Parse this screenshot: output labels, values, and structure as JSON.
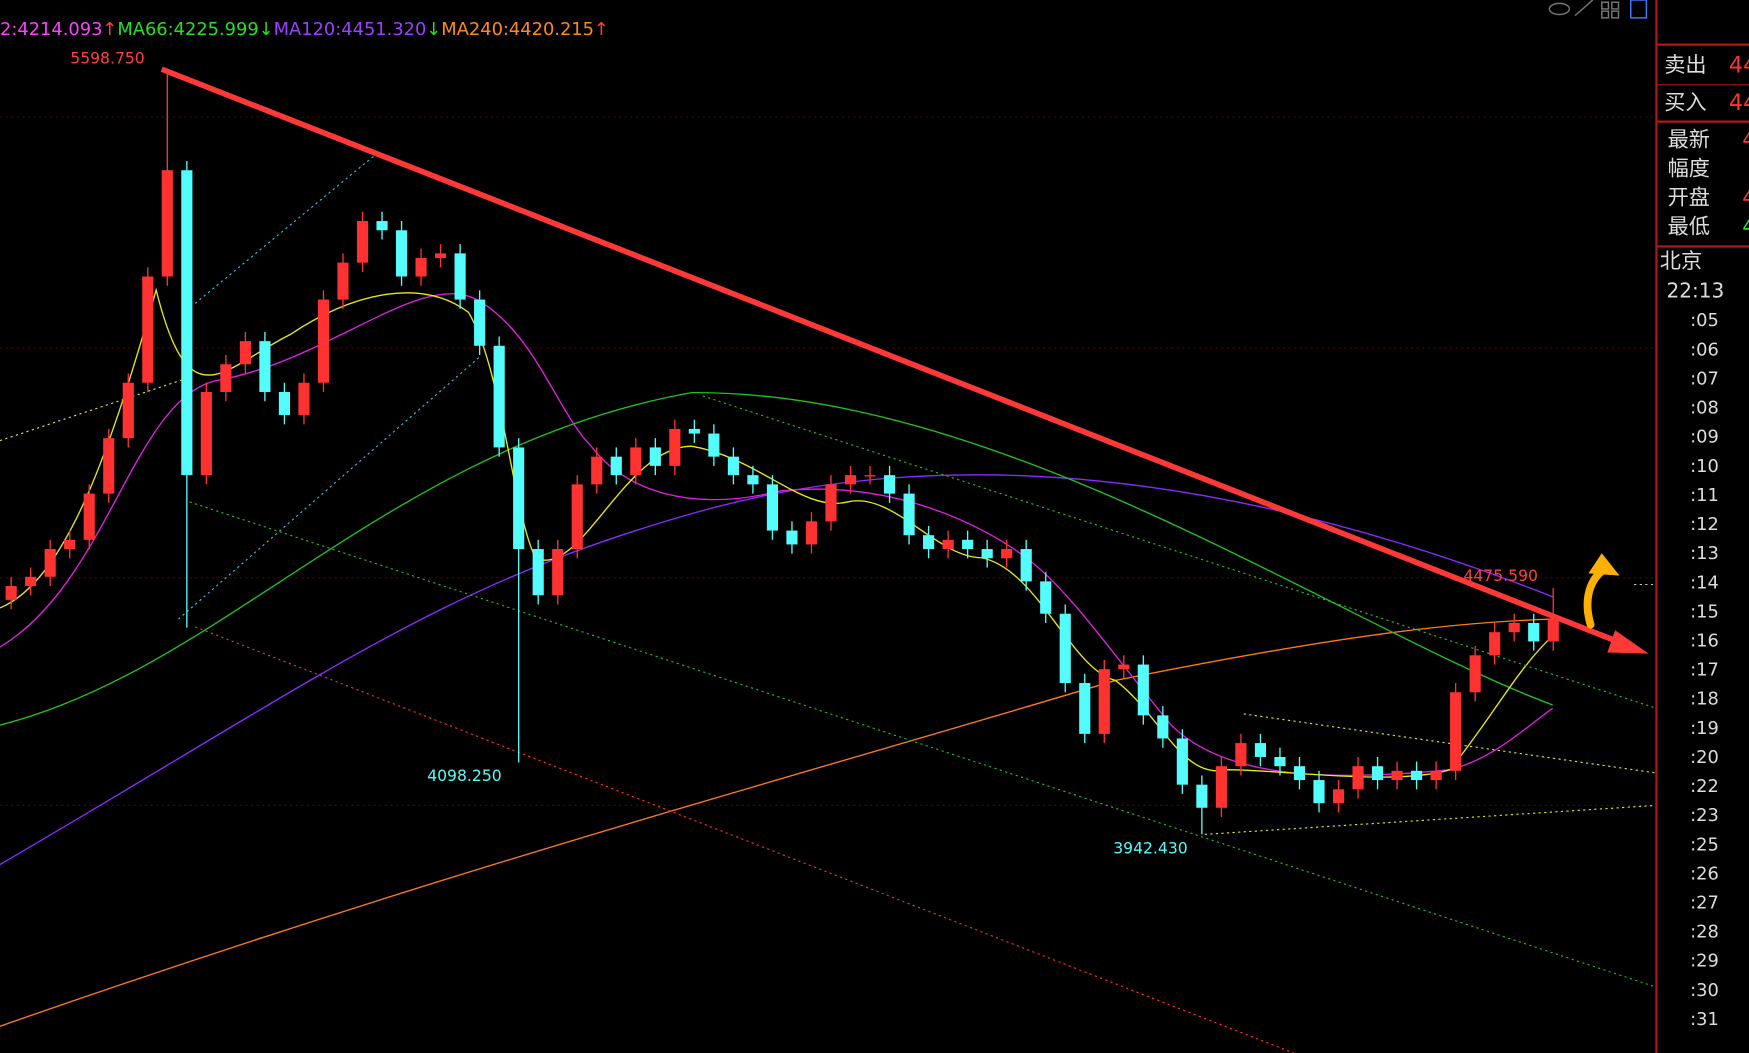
{
  "ma_legend": [
    {
      "label": "2:4214.093",
      "arrow": "↑"
    },
    {
      "label": "MA66:4225.999",
      "arrow": "↓"
    },
    {
      "label": "MA120:4451.320",
      "arrow": "↓"
    },
    {
      "label": "MA240:4420.215",
      "arrow": "↑"
    }
  ],
  "annotations": [
    {
      "value": 5598.75,
      "label": "5598.750"
    },
    {
      "value": 4098.25,
      "label": "4098.250"
    },
    {
      "value": 3942.43,
      "label": "3942.430"
    },
    {
      "value": 4475.59,
      "label": "4475.590"
    }
  ],
  "candles": {
    "open": [
      4450,
      4480,
      4500,
      4560,
      4580,
      4680,
      4800,
      4920,
      5150,
      5380,
      4720,
      4900,
      4960,
      5010,
      4900,
      4850,
      4920,
      5100,
      5180,
      5270,
      5250,
      5150,
      5190,
      5200,
      5100,
      5000,
      4780,
      4560,
      4460,
      4560,
      4700,
      4760,
      4720,
      4780,
      4740,
      4820,
      4810,
      4760,
      4720,
      4700,
      4600,
      4570,
      4620,
      4700,
      4720,
      4720,
      4680,
      4590,
      4560,
      4580,
      4560,
      4540,
      4560,
      4490,
      4420,
      4270,
      4160,
      4300,
      4310,
      4200,
      4150,
      4050,
      4000,
      4090,
      4140,
      4110,
      4090,
      4060,
      4010,
      4040,
      4090,
      4060,
      4080,
      4060,
      4080,
      4250,
      4330,
      4380,
      4400,
      4360
    ],
    "high": [
      4500,
      4520,
      4580,
      4600,
      4700,
      4820,
      4940,
      5170,
      5598.75,
      5400,
      4920,
      4980,
      5030,
      5030,
      4920,
      4940,
      5120,
      5200,
      5290,
      5290,
      5270,
      5210,
      5220,
      5220,
      5120,
      5020,
      4800,
      4580,
      4580,
      4720,
      4780,
      4780,
      4800,
      4800,
      4840,
      4840,
      4830,
      4780,
      4740,
      4720,
      4620,
      4640,
      4720,
      4740,
      4740,
      4740,
      4700,
      4610,
      4600,
      4600,
      4580,
      4580,
      4580,
      4510,
      4440,
      4290,
      4320,
      4330,
      4330,
      4220,
      4170,
      4070,
      4110,
      4160,
      4160,
      4130,
      4110,
      4080,
      4060,
      4110,
      4110,
      4100,
      4100,
      4100,
      4270,
      4350,
      4400,
      4420,
      4420,
      4475.59
    ],
    "low": [
      4430,
      4460,
      4480,
      4540,
      4560,
      4660,
      4780,
      4900,
      5130,
      4390,
      4700,
      4880,
      4940,
      4880,
      4830,
      4830,
      4900,
      5080,
      5160,
      5230,
      5130,
      5130,
      5170,
      5080,
      4980,
      4760,
      4098.25,
      4440,
      4440,
      4540,
      4680,
      4700,
      4700,
      4720,
      4720,
      4790,
      4740,
      4700,
      4680,
      4580,
      4550,
      4550,
      4600,
      4680,
      4700,
      4660,
      4570,
      4540,
      4540,
      4540,
      4520,
      4520,
      4470,
      4400,
      4250,
      4140,
      4140,
      4280,
      4180,
      4130,
      4030,
      3942.43,
      3980,
      4070,
      4090,
      4070,
      4040,
      3990,
      3990,
      4020,
      4040,
      4040,
      4040,
      4040,
      4060,
      4230,
      4310,
      4360,
      4340,
      4340
    ],
    "close": [
      4480,
      4500,
      4560,
      4580,
      4680,
      4800,
      4920,
      5150,
      5380,
      4720,
      4900,
      4960,
      5010,
      4900,
      4850,
      4920,
      5100,
      5180,
      5270,
      5250,
      5150,
      5190,
      5200,
      5100,
      5000,
      4780,
      4560,
      4460,
      4560,
      4700,
      4760,
      4720,
      4780,
      4740,
      4820,
      4810,
      4760,
      4720,
      4700,
      4600,
      4570,
      4620,
      4700,
      4720,
      4720,
      4680,
      4590,
      4560,
      4580,
      4560,
      4540,
      4560,
      4490,
      4420,
      4270,
      4160,
      4300,
      4310,
      4200,
      4150,
      4050,
      4000,
      4090,
      4140,
      4110,
      4090,
      4060,
      4010,
      4040,
      4090,
      4060,
      4080,
      4060,
      4080,
      4250,
      4330,
      4380,
      4400,
      4360,
      4410
    ]
  },
  "side_panel": {
    "quotes": [
      {
        "label": "卖出",
        "value": "44"
      },
      {
        "label": "买入",
        "value": "44"
      }
    ],
    "stats": [
      {
        "label": "最新",
        "value": "4"
      },
      {
        "label": "幅度",
        "value": ""
      },
      {
        "label": "开盘",
        "value": "4"
      },
      {
        "label": "最低",
        "value": "4"
      }
    ],
    "timezone": "北京",
    "time": "22:13",
    "ticks": [
      ":05",
      ":06",
      ":07",
      ":08",
      ":09",
      ":10",
      ":11",
      ":12",
      ":13",
      ":14",
      ":15",
      ":16",
      ":17",
      ":18",
      ":19",
      ":20",
      ":22",
      ":23",
      ":25",
      ":26",
      ":27",
      ":28",
      ":29",
      ":30",
      ":31"
    ]
  }
}
